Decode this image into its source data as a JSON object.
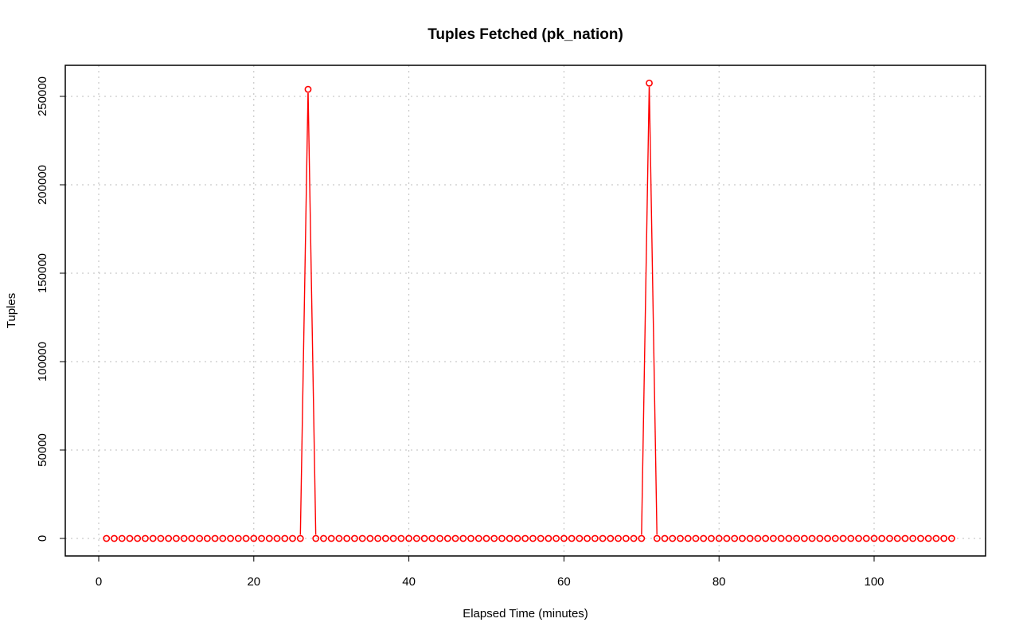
{
  "chart_data": {
    "type": "line",
    "title": "Tuples Fetched (pk_nation)",
    "xlabel": "Elapsed Time (minutes)",
    "ylabel": "Tuples",
    "xlim": [
      0,
      111
    ],
    "ylim": [
      -10000,
      267000
    ],
    "x_ticks": [
      0,
      20,
      40,
      60,
      80,
      100
    ],
    "y_ticks": [
      0,
      50000,
      100000,
      150000,
      200000,
      250000
    ],
    "grid": true,
    "series": [
      {
        "color": "#ff0000",
        "marker": "open-circle",
        "x_start": 1,
        "x_end": 110,
        "default_value": 0,
        "spikes": [
          {
            "x": 27,
            "y": 254000
          },
          {
            "x": 71,
            "y": 257500
          }
        ]
      }
    ]
  }
}
